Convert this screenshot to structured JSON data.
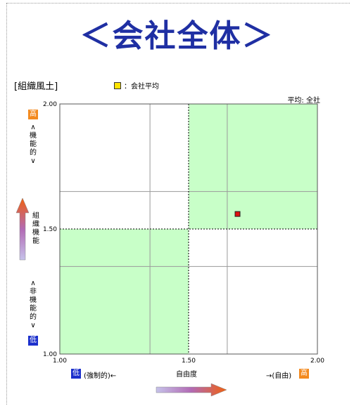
{
  "page": {
    "title": "＜会社全体＞"
  },
  "section": {
    "label": "[組織風土]"
  },
  "legend": {
    "item": "：会社平均",
    "color": "#ffe400"
  },
  "avg": {
    "label": "平均: 全社"
  },
  "axis_badges": {
    "high": "高",
    "low": "低"
  },
  "y_axis": {
    "upper": [
      "∧",
      "機",
      "能",
      "的",
      "∨"
    ],
    "lower": [
      "∧",
      "非",
      "機",
      "能",
      "的",
      "∨"
    ],
    "name": [
      "組",
      "織",
      "機",
      "能"
    ]
  },
  "x_axis": {
    "low_text": "(強制的)←",
    "high_text": "→(自由)",
    "name": "自由度"
  },
  "chart_data": {
    "type": "scatter",
    "xlabel": "自由度",
    "ylabel": "組織機能",
    "xlim": [
      1.0,
      2.0
    ],
    "ylim": [
      1.0,
      2.0
    ],
    "x_ticks": [
      "1.00",
      "1.50",
      "2.00"
    ],
    "y_ticks": [
      "1.00",
      "1.50",
      "2.00"
    ],
    "grid": true,
    "gridlines": [
      1.35,
      1.65
    ],
    "divider": 1.5,
    "quadrant_color": "#c8ffc8",
    "series": [
      {
        "name": "会社平均",
        "points": [
          {
            "x": 1.69,
            "y": 1.56
          }
        ],
        "color": "#e01010"
      }
    ]
  }
}
